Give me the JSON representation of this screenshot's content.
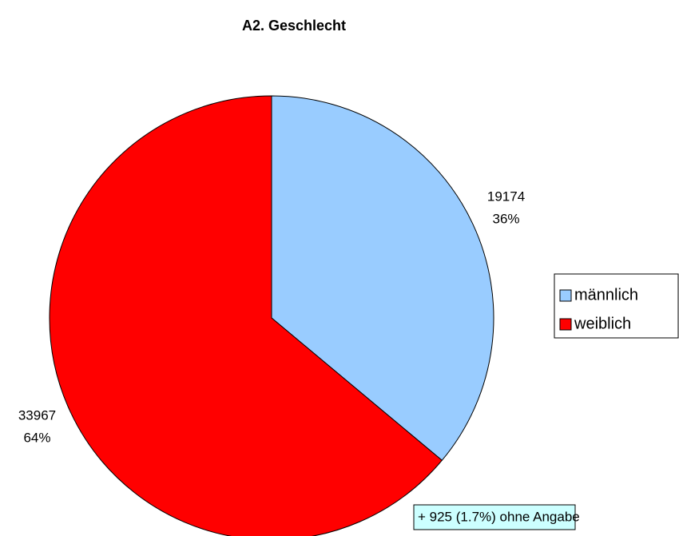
{
  "chart_data": {
    "type": "pie",
    "title": "A2. Geschlecht",
    "categories": [
      "männlich",
      "weiblich"
    ],
    "values": [
      19174,
      33967
    ],
    "percent_labels": [
      "36%",
      "64%"
    ],
    "colors": [
      "#99ccff",
      "#ff0000"
    ],
    "legend": "right",
    "annotation": "+ 925 (1.7%) ohne Angabe"
  }
}
